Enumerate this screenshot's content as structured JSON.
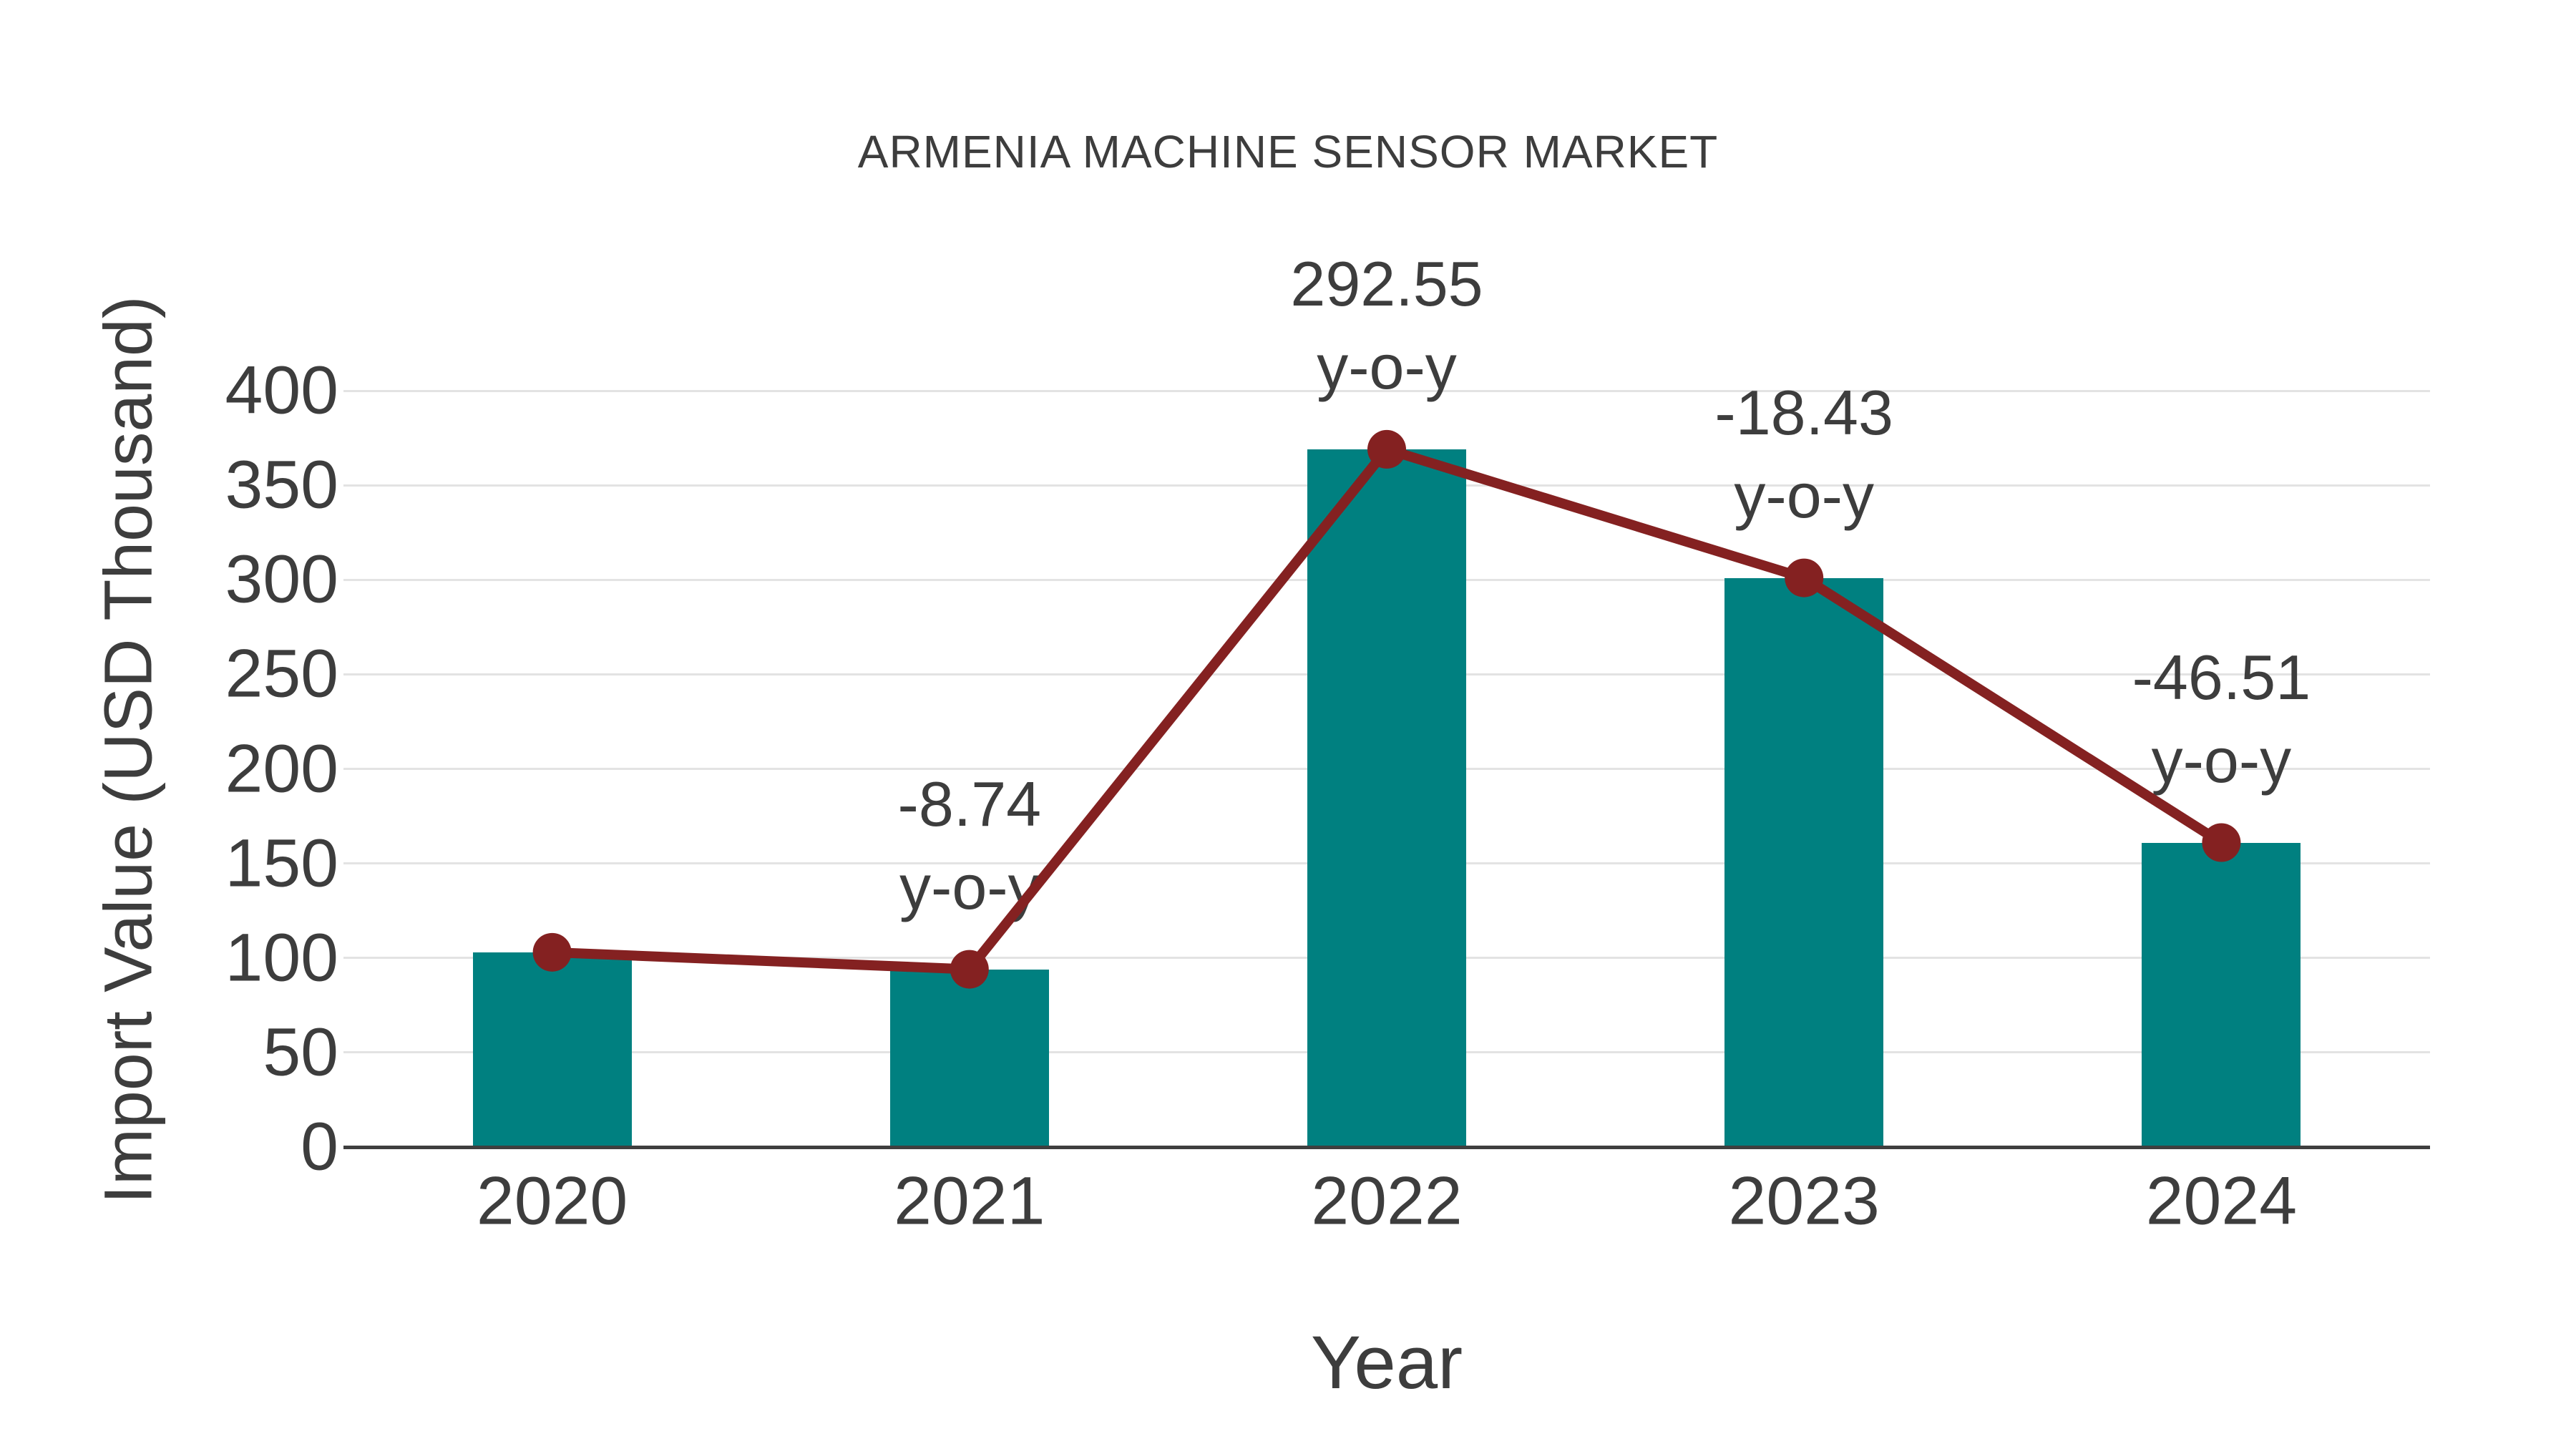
{
  "title": "ARMENIA MACHINE SENSOR MARKET",
  "chart_data": {
    "type": "bar+line",
    "title": "ARMENIA MACHINE SENSOR MARKET",
    "xlabel": "Year",
    "ylabel": "Import Value (USD Thousand)",
    "categories": [
      "2020",
      "2021",
      "2022",
      "2023",
      "2024"
    ],
    "series": [
      {
        "name": "import-value-bars",
        "type": "bar",
        "color": "#008080",
        "values": [
          103,
          94,
          369,
          301,
          161
        ]
      },
      {
        "name": "import-value-trend",
        "type": "line",
        "color": "#842121",
        "values": [
          103,
          94,
          369,
          301,
          161
        ]
      }
    ],
    "annotations": [
      {
        "category": "2021",
        "line1": "-8.74",
        "line2": "y-o-y"
      },
      {
        "category": "2022",
        "line1": "292.55",
        "line2": "y-o-y"
      },
      {
        "category": "2023",
        "line1": "-18.43",
        "line2": "y-o-y"
      },
      {
        "category": "2024",
        "line1": "-46.51",
        "line2": "y-o-y"
      }
    ],
    "ylim": [
      0,
      400
    ],
    "yticks": [
      0,
      50,
      100,
      150,
      200,
      250,
      300,
      350,
      400
    ],
    "grid": true,
    "legend": "none",
    "colors": {
      "bar": "#008080",
      "line": "#842121",
      "marker": "#842121",
      "text": "#3d3d3d",
      "grid": "#e3e3e3",
      "axis": "#3f3f3f",
      "background": "#ffffff"
    }
  }
}
